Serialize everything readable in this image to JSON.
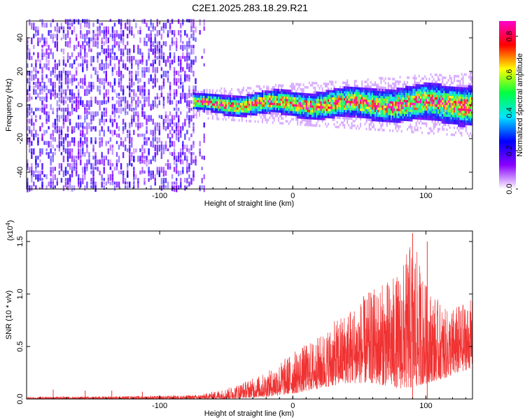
{
  "title": "C2E1.2025.283.18.29.R21",
  "chart_data": [
    {
      "type": "heatmap",
      "xlabel": "Height of straight line (km)",
      "ylabel": "Frequency (Hz)",
      "xlim": [
        -200,
        135
      ],
      "ylim": [
        -50,
        50
      ],
      "xticks": [
        -100,
        0,
        100
      ],
      "yticks": [
        -40,
        -20,
        0,
        20,
        40
      ],
      "colorbar": {
        "label": "Normalized spectral amplitude",
        "range": [
          0,
          0.88
        ],
        "ticks": [
          0.0,
          0.2,
          0.4,
          0.6,
          0.8
        ],
        "colors": [
          "#ffffff",
          "#8800ff",
          "#0000ff",
          "#00e5ff",
          "#00ff40",
          "#ffff00",
          "#ff0000",
          "#ff00cc"
        ]
      },
      "regions": [
        {
          "x_range": [
            -200,
            -67
          ],
          "description_freq_range": [
            -50,
            50
          ],
          "typical_amplitude": 0.08
        },
        {
          "x_range": [
            -75,
            135
          ],
          "center_freq": 0,
          "band_halfwidth": [
            5,
            12
          ],
          "peak_amplitude": 0.75
        }
      ]
    },
    {
      "type": "line",
      "xlabel": "Height of straight line (km)",
      "ylabel": "SNR (10 * v/v)",
      "yscale_label": "(x10",
      "yscale_exponent": "4",
      "scale_suffix": ")",
      "xlim": [
        -200,
        135
      ],
      "ylim": [
        0,
        1.6
      ],
      "xticks": [
        -100,
        0,
        100
      ],
      "yticks": [
        0.0,
        0.5,
        1.0,
        1.5
      ],
      "color": "#f03232",
      "envelope": [
        {
          "x": -200,
          "lo": 0.0,
          "hi": 0.02
        },
        {
          "x": -100,
          "lo": 0.0,
          "hi": 0.03
        },
        {
          "x": -70,
          "lo": 0.0,
          "hi": 0.04
        },
        {
          "x": -50,
          "lo": 0.0,
          "hi": 0.1
        },
        {
          "x": -20,
          "lo": 0.02,
          "hi": 0.25
        },
        {
          "x": 0,
          "lo": 0.05,
          "hi": 0.45
        },
        {
          "x": 20,
          "lo": 0.1,
          "hi": 0.6
        },
        {
          "x": 40,
          "lo": 0.15,
          "hi": 0.85
        },
        {
          "x": 60,
          "lo": 0.15,
          "hi": 1.05
        },
        {
          "x": 80,
          "lo": 0.1,
          "hi": 1.2
        },
        {
          "x": 90,
          "lo": 0.1,
          "hi": 1.55
        },
        {
          "x": 100,
          "lo": 0.15,
          "hi": 1.1
        },
        {
          "x": 115,
          "lo": 0.2,
          "hi": 0.85
        },
        {
          "x": 135,
          "lo": 0.3,
          "hi": 0.95
        }
      ],
      "spikes": [
        {
          "x": -180,
          "y": 0.09
        },
        {
          "x": -156,
          "y": 0.08
        },
        {
          "x": -136,
          "y": 0.08
        },
        {
          "x": -113,
          "y": 0.07
        },
        {
          "x": 90,
          "y": 1.58
        },
        {
          "x": 101,
          "y": 1.5
        }
      ]
    }
  ]
}
